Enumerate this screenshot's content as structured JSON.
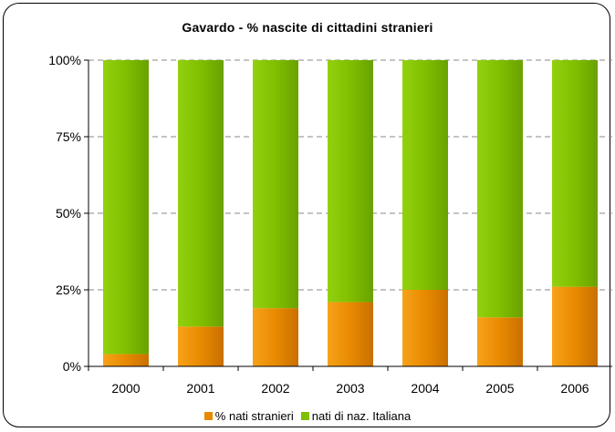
{
  "chart_data": {
    "type": "bar",
    "stacked": true,
    "title": "Gavardo - % nascite di cittadini stranieri",
    "categories": [
      "2000",
      "2001",
      "2002",
      "2003",
      "2004",
      "2005",
      "2006"
    ],
    "series": [
      {
        "name": "% nati stranieri",
        "color": "#e88a00",
        "values": [
          4,
          13,
          19,
          21,
          25,
          16,
          26
        ]
      },
      {
        "name": "nati di naz. Italiana",
        "color": "#7fbf00",
        "values": [
          96,
          87,
          81,
          79,
          75,
          84,
          74
        ]
      }
    ],
    "ylim": [
      0,
      100
    ],
    "y_ticks": [
      "0%",
      "25%",
      "50%",
      "75%",
      "100%"
    ],
    "grid": true,
    "legend_position": "bottom"
  }
}
